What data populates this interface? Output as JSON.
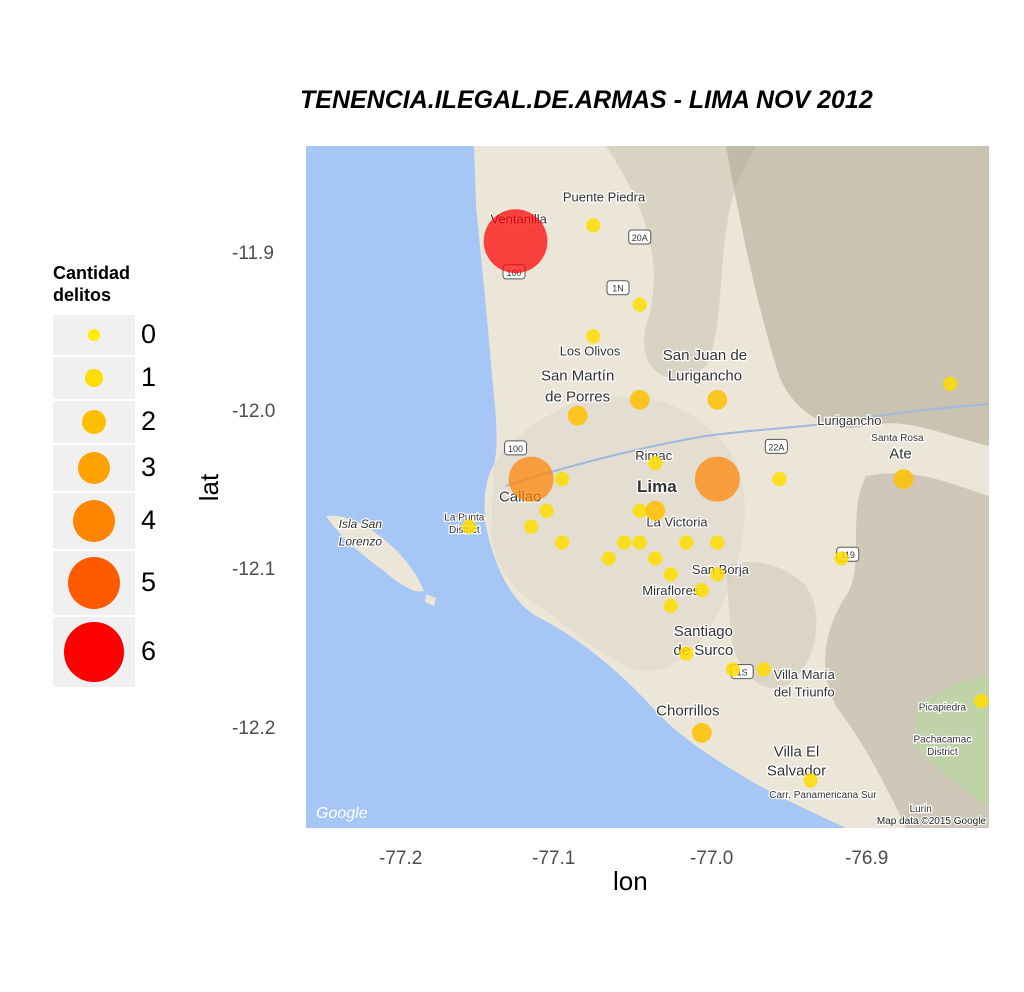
{
  "chart_data": {
    "type": "scatter",
    "title": "TENENCIA.ILEGAL.DE.ARMAS - LIMA NOV 2012",
    "xlabel": "lon",
    "ylabel": "lat",
    "xlim": [
      -77.265,
      -76.825
    ],
    "ylim": [
      -12.26,
      -11.83
    ],
    "x_ticks": [
      "-77.2",
      "-77.1",
      "-77.0",
      "-76.9"
    ],
    "y_ticks": [
      "-11.9",
      "-12.0",
      "-12.1",
      "-12.2"
    ],
    "legend": {
      "title": "Cantidad\ndelitos",
      "title_lines": [
        "Cantidad",
        "delitos"
      ],
      "position": "left",
      "entries": [
        {
          "label": "0",
          "value": 0,
          "color": "#FFEE00"
        },
        {
          "label": "1",
          "value": 1,
          "color": "#FFDD00"
        },
        {
          "label": "2",
          "value": 2,
          "color": "#FFBF00"
        },
        {
          "label": "3",
          "value": 3,
          "color": "#FFA200"
        },
        {
          "label": "4",
          "value": 4,
          "color": "#FF8400"
        },
        {
          "label": "5",
          "value": 5,
          "color": "#FF5A00"
        },
        {
          "label": "6",
          "value": 6,
          "color": "#FF0000"
        }
      ]
    },
    "points": [
      {
        "lon": -77.13,
        "lat": -11.89,
        "count": 6
      },
      {
        "lon": -77.12,
        "lat": -12.04,
        "count": 4
      },
      {
        "lon": -77.0,
        "lat": -12.04,
        "count": 4
      },
      {
        "lon": -77.09,
        "lat": -12.0,
        "count": 2
      },
      {
        "lon": -77.05,
        "lat": -11.99,
        "count": 2
      },
      {
        "lon": -77.0,
        "lat": -11.99,
        "count": 2
      },
      {
        "lon": -76.88,
        "lat": -12.04,
        "count": 2
      },
      {
        "lon": -77.04,
        "lat": -12.06,
        "count": 2
      },
      {
        "lon": -77.01,
        "lat": -12.2,
        "count": 2
      },
      {
        "lon": -77.08,
        "lat": -11.88,
        "count": 1
      },
      {
        "lon": -77.05,
        "lat": -11.93,
        "count": 1
      },
      {
        "lon": -77.08,
        "lat": -11.95,
        "count": 1
      },
      {
        "lon": -76.85,
        "lat": -11.98,
        "count": 1
      },
      {
        "lon": -77.04,
        "lat": -12.03,
        "count": 1
      },
      {
        "lon": -77.1,
        "lat": -12.04,
        "count": 1
      },
      {
        "lon": -76.96,
        "lat": -12.04,
        "count": 1
      },
      {
        "lon": -77.11,
        "lat": -12.06,
        "count": 1
      },
      {
        "lon": -77.05,
        "lat": -12.06,
        "count": 1
      },
      {
        "lon": -77.16,
        "lat": -12.07,
        "count": 1
      },
      {
        "lon": -77.12,
        "lat": -12.07,
        "count": 1
      },
      {
        "lon": -77.1,
        "lat": -12.08,
        "count": 1
      },
      {
        "lon": -77.06,
        "lat": -12.08,
        "count": 1
      },
      {
        "lon": -77.05,
        "lat": -12.08,
        "count": 1
      },
      {
        "lon": -77.02,
        "lat": -12.08,
        "count": 1
      },
      {
        "lon": -77.0,
        "lat": -12.08,
        "count": 1
      },
      {
        "lon": -77.07,
        "lat": -12.09,
        "count": 1
      },
      {
        "lon": -77.04,
        "lat": -12.09,
        "count": 1
      },
      {
        "lon": -76.92,
        "lat": -12.09,
        "count": 1
      },
      {
        "lon": -77.03,
        "lat": -12.1,
        "count": 1
      },
      {
        "lon": -77.0,
        "lat": -12.1,
        "count": 1
      },
      {
        "lon": -77.01,
        "lat": -12.11,
        "count": 1
      },
      {
        "lon": -77.03,
        "lat": -12.12,
        "count": 1
      },
      {
        "lon": -77.02,
        "lat": -12.15,
        "count": 1
      },
      {
        "lon": -76.99,
        "lat": -12.16,
        "count": 1
      },
      {
        "lon": -76.97,
        "lat": -12.16,
        "count": 1
      },
      {
        "lon": -76.83,
        "lat": -12.18,
        "count": 1
      },
      {
        "lon": -76.94,
        "lat": -12.23,
        "count": 1
      }
    ]
  },
  "map": {
    "labels": [
      {
        "text": "Puente Piedra",
        "lon": -77.073,
        "lat": -11.865,
        "size": "small"
      },
      {
        "text": "Ventanilla",
        "lon": -77.128,
        "lat": -11.879,
        "size": "small"
      },
      {
        "text": "Los Olivos",
        "lon": -77.082,
        "lat": -11.962,
        "size": "small"
      },
      {
        "text": "San Juan de",
        "lon": -77.008,
        "lat": -11.965,
        "size": "medium"
      },
      {
        "text": "Lurigancho",
        "lon": -77.008,
        "lat": -11.978,
        "size": "medium"
      },
      {
        "text": "San Martín",
        "lon": -77.09,
        "lat": -11.978,
        "size": "medium"
      },
      {
        "text": "de Porres",
        "lon": -77.09,
        "lat": -11.991,
        "size": "medium"
      },
      {
        "text": "Lurigancho",
        "lon": -76.915,
        "lat": -12.006,
        "size": "small"
      },
      {
        "text": "Santa Rosa",
        "lon": -76.884,
        "lat": -12.016,
        "size": "tiny"
      },
      {
        "text": "Ate",
        "lon": -76.882,
        "lat": -12.027,
        "size": "medium"
      },
      {
        "text": "Rimac",
        "lon": -77.041,
        "lat": -12.028,
        "size": "small"
      },
      {
        "text": "Lima",
        "lon": -77.039,
        "lat": -12.048,
        "size": "large"
      },
      {
        "text": "Callao",
        "lon": -77.127,
        "lat": -12.054,
        "size": "medium"
      },
      {
        "text": "La Punta",
        "lon": -77.163,
        "lat": -12.066,
        "size": "tiny"
      },
      {
        "text": "District",
        "lon": -77.163,
        "lat": -12.074,
        "size": "tiny"
      },
      {
        "text": "La Victoria",
        "lon": -77.026,
        "lat": -12.07,
        "size": "small"
      },
      {
        "text": "Isla San",
        "lon": -77.23,
        "lat": -12.071,
        "size": "italic"
      },
      {
        "text": "Lorenzo",
        "lon": -77.23,
        "lat": -12.082,
        "size": "italic"
      },
      {
        "text": "San Borja",
        "lon": -76.998,
        "lat": -12.1,
        "size": "small"
      },
      {
        "text": "Miraflores",
        "lon": -77.03,
        "lat": -12.113,
        "size": "small"
      },
      {
        "text": "Santiago",
        "lon": -77.009,
        "lat": -12.139,
        "size": "medium"
      },
      {
        "text": "de Surco",
        "lon": -77.009,
        "lat": -12.151,
        "size": "medium"
      },
      {
        "text": "Villa María",
        "lon": -76.944,
        "lat": -12.166,
        "size": "small"
      },
      {
        "text": "del Triunfo",
        "lon": -76.944,
        "lat": -12.177,
        "size": "small"
      },
      {
        "text": "Picapiedra",
        "lon": -76.855,
        "lat": -12.186,
        "size": "tiny"
      },
      {
        "text": "Chorrillos",
        "lon": -77.019,
        "lat": -12.189,
        "size": "medium"
      },
      {
        "text": "Pachacamac",
        "lon": -76.855,
        "lat": -12.206,
        "size": "tiny"
      },
      {
        "text": "District",
        "lon": -76.855,
        "lat": -12.214,
        "size": "tiny"
      },
      {
        "text": "Villa El",
        "lon": -76.949,
        "lat": -12.215,
        "size": "medium"
      },
      {
        "text": "Salvador",
        "lon": -76.949,
        "lat": -12.227,
        "size": "medium"
      },
      {
        "text": "Carr. Panamericana Sur",
        "lon": -76.932,
        "lat": -12.241,
        "size": "tiny"
      },
      {
        "text": "Lurin",
        "lon": -76.869,
        "lat": -12.25,
        "size": "tiny"
      }
    ],
    "shields": [
      {
        "text": "20A",
        "lon": -77.05,
        "lat": -11.888
      },
      {
        "text": "1N",
        "lon": -77.064,
        "lat": -11.92
      },
      {
        "text": "100",
        "lon": -77.131,
        "lat": -11.91
      },
      {
        "text": "100",
        "lon": -77.13,
        "lat": -12.021
      },
      {
        "text": "22A",
        "lon": -76.962,
        "lat": -12.02
      },
      {
        "text": "119",
        "lon": -76.916,
        "lat": -12.088
      },
      {
        "text": "1S",
        "lon": -76.984,
        "lat": -12.162
      }
    ],
    "watermark": "Google",
    "attribution": "Map data ©2015 Google",
    "colors": {
      "sea": "#a6c6f5",
      "land": "#ece6d8",
      "urban": "#e4ddd2",
      "hills": "#cbc3b3",
      "mountains": "#aea594",
      "green": "#bcd6a4",
      "river": "#9fb9dd"
    }
  }
}
